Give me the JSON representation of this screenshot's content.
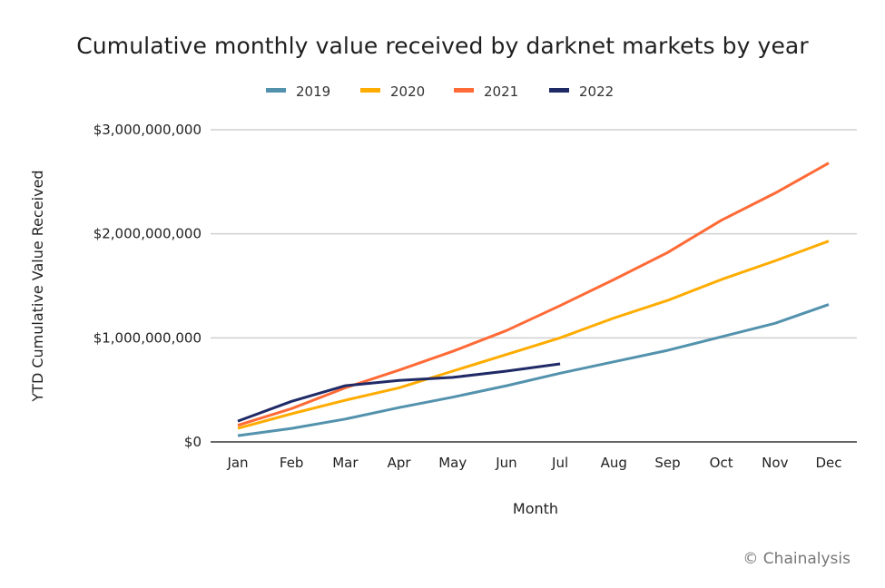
{
  "chart_data": {
    "type": "line",
    "title": "Cumulative monthly value received by darknet markets by year",
    "xlabel": "Month",
    "ylabel": "YTD Cumulative Value Received",
    "categories": [
      "Jan",
      "Feb",
      "Mar",
      "Apr",
      "May",
      "Jun",
      "Jul",
      "Aug",
      "Sep",
      "Oct",
      "Nov",
      "Dec"
    ],
    "ylim": [
      0,
      3000000000
    ],
    "yticks": [
      0,
      1000000000,
      2000000000,
      3000000000
    ],
    "ytick_labels": [
      "$0",
      "$1,000,000,000",
      "$2,000,000,000",
      "$3,000,000,000"
    ],
    "grid": true,
    "legend_position": "top-center",
    "series": [
      {
        "name": "2019",
        "color": "#5392AD",
        "values": [
          60000000,
          130000000,
          220000000,
          330000000,
          430000000,
          540000000,
          660000000,
          770000000,
          880000000,
          1010000000,
          1140000000,
          1320000000
        ]
      },
      {
        "name": "2020",
        "color": "#FFAC00",
        "values": [
          130000000,
          270000000,
          400000000,
          520000000,
          680000000,
          840000000,
          1000000000,
          1190000000,
          1360000000,
          1560000000,
          1740000000,
          1930000000
        ]
      },
      {
        "name": "2021",
        "color": "#FF6A36",
        "values": [
          160000000,
          320000000,
          520000000,
          690000000,
          870000000,
          1070000000,
          1310000000,
          1560000000,
          1820000000,
          2130000000,
          2390000000,
          2680000000
        ]
      },
      {
        "name": "2022",
        "color": "#1F2A66",
        "values": [
          200000000,
          390000000,
          540000000,
          590000000,
          620000000,
          680000000,
          750000000
        ]
      }
    ]
  },
  "credit": "© Chainalysis"
}
